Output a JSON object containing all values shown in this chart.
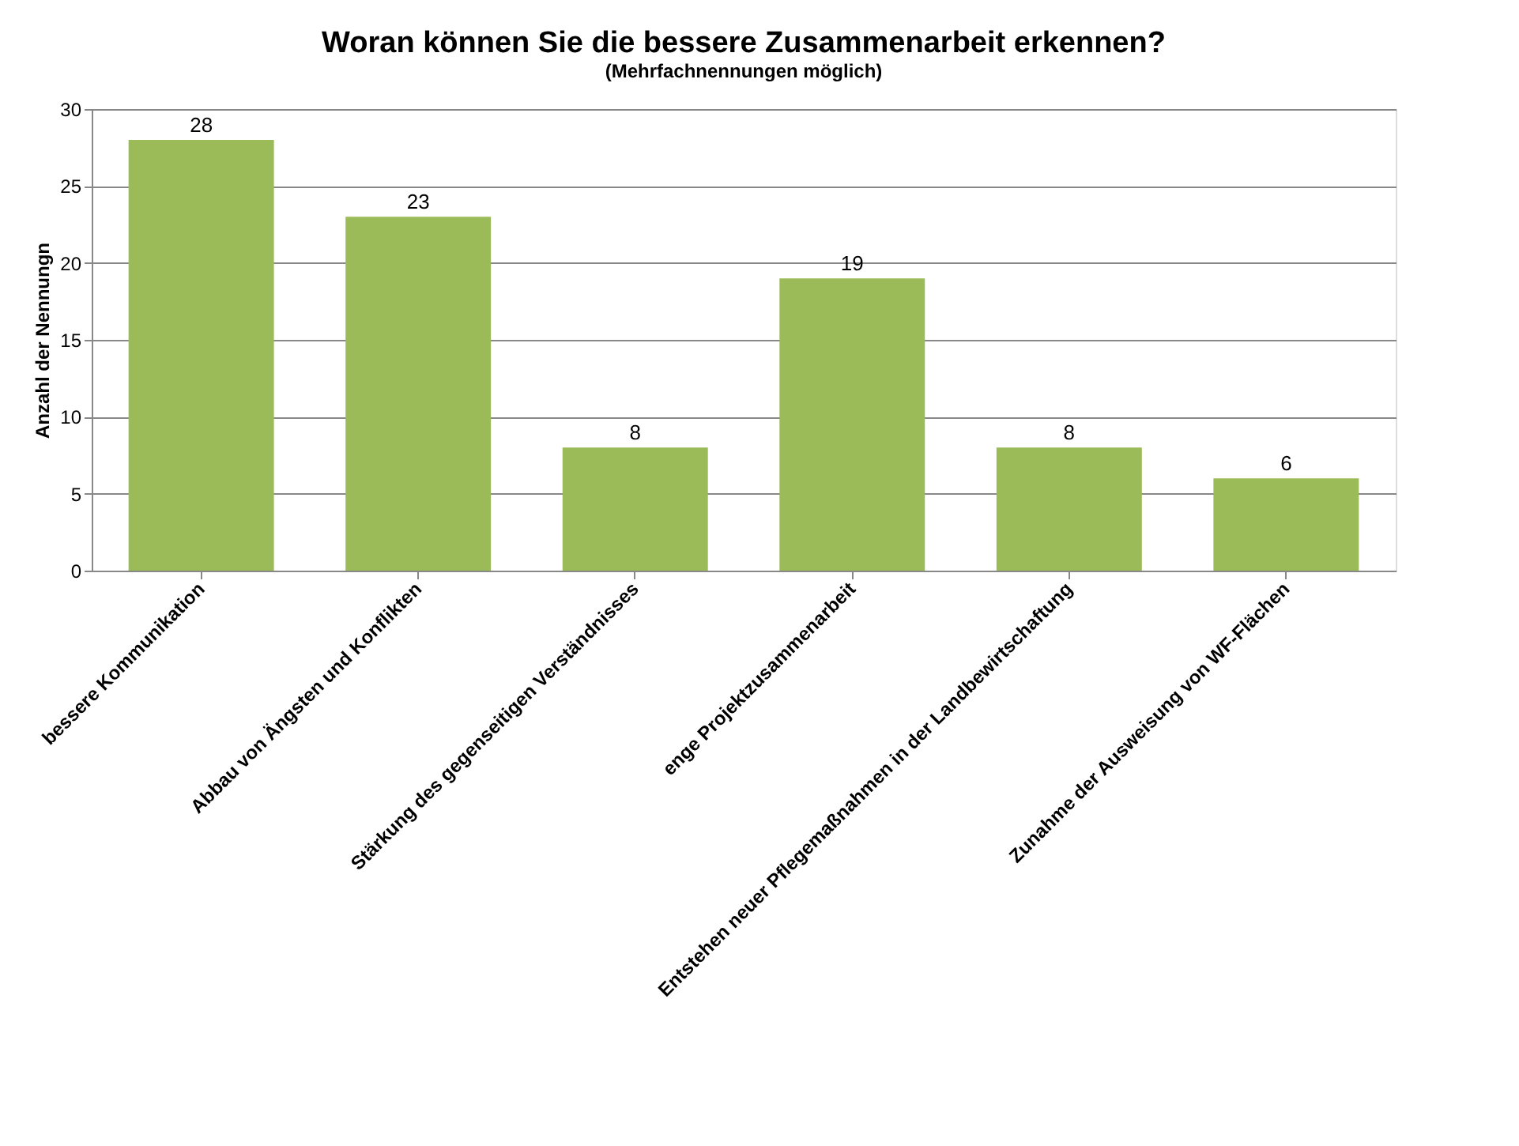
{
  "chart_data": {
    "type": "bar",
    "title": "Woran können Sie die bessere Zusammenarbeit erkennen?",
    "subtitle": "(Mehrfachnennungen möglich)",
    "ylabel": "Anzahl der Nennungn",
    "categories": [
      "bessere Kommunikation",
      "Abbau von Ängsten und Konflikten",
      "Stärkung des gegenseitigen Verständnisses",
      "enge Projektzusammenarbeit",
      "Entstehen neuer Pflegemaßnahmen in der Landbewirtschaftung",
      "Zunahme der Ausweisung von WF-Flächen"
    ],
    "values": [
      28,
      23,
      8,
      19,
      8,
      6
    ],
    "color": "#9bbb59",
    "ylim": [
      0,
      30
    ],
    "yticks": [
      0,
      5,
      10,
      15,
      20,
      25,
      30
    ],
    "grid": "y",
    "data_labels": true
  }
}
